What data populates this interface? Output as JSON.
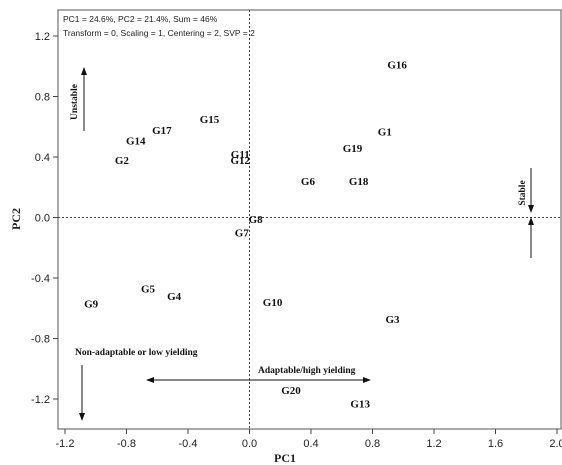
{
  "chart_data": {
    "type": "scatter",
    "info_lines": [
      "PC1 = 24.6%, PC2 = 21.4%, Sum = 46%",
      "Transform = 0, Scaling = 1, Centering = 2, SVP = 2"
    ],
    "xlabel": "PC1",
    "ylabel": "PC2",
    "xlim": [
      -1.2,
      2.0
    ],
    "ylim": [
      -1.33,
      1.3
    ],
    "xticks": [
      "-1.2",
      "-0.8",
      "-0.4",
      "0.0",
      "0.4",
      "0.8",
      "1.2",
      "1.6",
      "2.0"
    ],
    "yticks": [
      "-1.2",
      "-0.8",
      "-0.4",
      "0.0",
      "0.4",
      "0.8",
      "1.2"
    ],
    "reference_lines": {
      "x": 0,
      "y": 0,
      "style": "dotted"
    },
    "points": [
      {
        "label": "G1",
        "x": 0.88,
        "y": 0.57
      },
      {
        "label": "G2",
        "x": -0.83,
        "y": 0.38
      },
      {
        "label": "G3",
        "x": 0.93,
        "y": -0.67
      },
      {
        "label": "G4",
        "x": -0.49,
        "y": -0.52
      },
      {
        "label": "G5",
        "x": -0.66,
        "y": -0.47
      },
      {
        "label": "G6",
        "x": 0.38,
        "y": 0.24
      },
      {
        "label": "G7",
        "x": -0.05,
        "y": -0.1
      },
      {
        "label": "G8",
        "x": 0.04,
        "y": -0.01
      },
      {
        "label": "G9",
        "x": -1.03,
        "y": -0.57
      },
      {
        "label": "G10",
        "x": 0.15,
        "y": -0.56
      },
      {
        "label": "G11",
        "x": -0.06,
        "y": 0.42
      },
      {
        "label": "G12",
        "x": -0.06,
        "y": 0.38
      },
      {
        "label": "G13",
        "x": 0.72,
        "y": -1.23
      },
      {
        "label": "G14",
        "x": -0.74,
        "y": 0.51
      },
      {
        "label": "G15",
        "x": -0.26,
        "y": 0.65
      },
      {
        "label": "G16",
        "x": 0.96,
        "y": 1.01
      },
      {
        "label": "G17",
        "x": -0.57,
        "y": 0.58
      },
      {
        "label": "G18",
        "x": 0.71,
        "y": 0.24
      },
      {
        "label": "G19",
        "x": 0.67,
        "y": 0.46
      },
      {
        "label": "G20",
        "x": 0.27,
        "y": -1.14
      }
    ],
    "annotations": {
      "unstable": "Unstable",
      "stable": "Stable",
      "non_adaptable": "Non-adaptable or low yielding",
      "adaptable": "Adaptable/high yielding"
    }
  }
}
